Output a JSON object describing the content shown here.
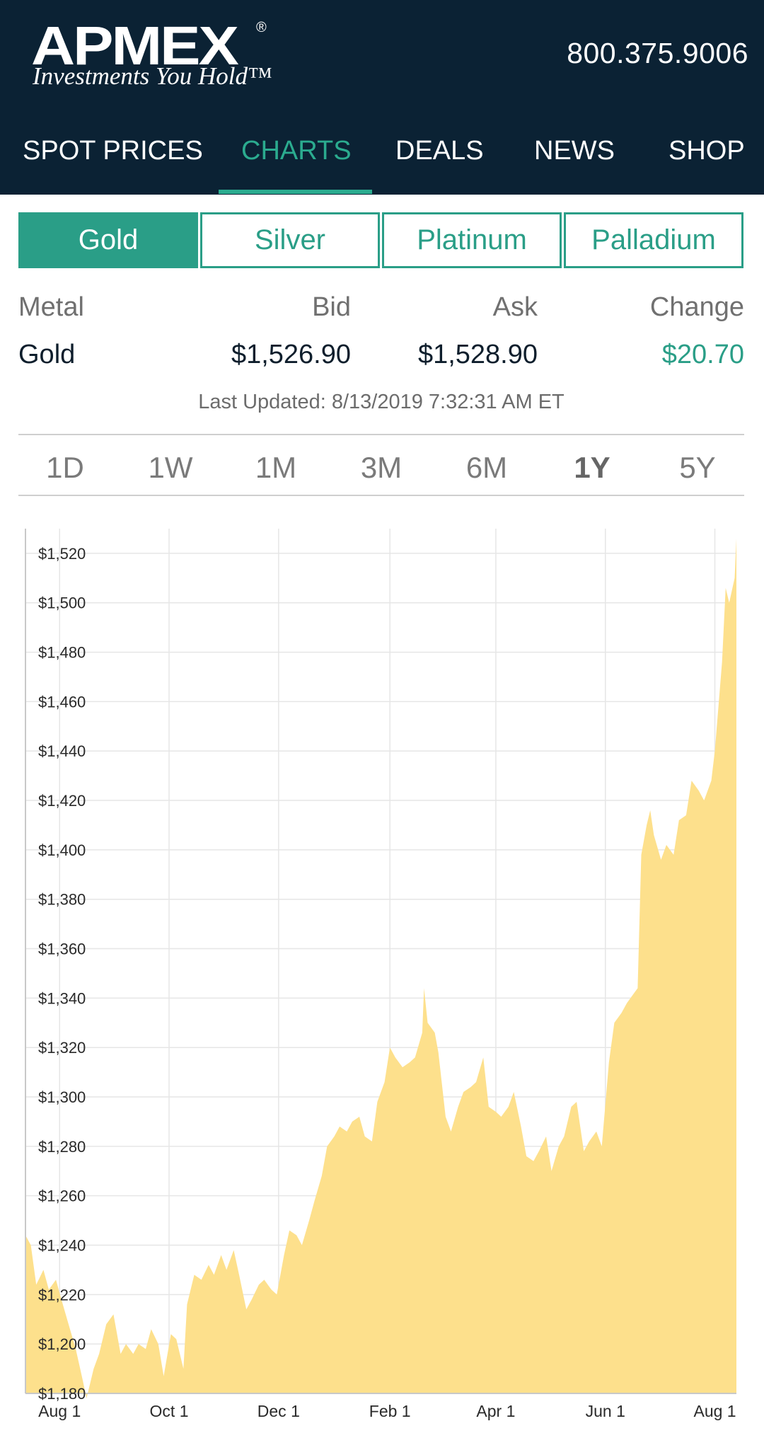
{
  "header": {
    "logo_text": "APMEX",
    "logo_reg": "®",
    "tagline": "Investments You Hold™",
    "phone": "800.375.9006"
  },
  "nav": {
    "items": [
      {
        "label": "SPOT PRICES",
        "active": false
      },
      {
        "label": "CHARTS",
        "active": true
      },
      {
        "label": "DEALS",
        "active": false
      },
      {
        "label": "NEWS",
        "active": false
      },
      {
        "label": "SHOP",
        "active": false
      }
    ]
  },
  "metal_tabs": [
    {
      "label": "Gold",
      "active": true
    },
    {
      "label": "Silver",
      "active": false
    },
    {
      "label": "Platinum",
      "active": false
    },
    {
      "label": "Palladium",
      "active": false
    }
  ],
  "price_table": {
    "headers": {
      "metal": "Metal",
      "bid": "Bid",
      "ask": "Ask",
      "change": "Change"
    },
    "row": {
      "metal": "Gold",
      "bid": "$1,526.90",
      "ask": "$1,528.90",
      "change": "$20.70"
    },
    "last_updated": "Last Updated: 8/13/2019 7:32:31 AM ET"
  },
  "time_ranges": [
    {
      "label": "1D",
      "active": false
    },
    {
      "label": "1W",
      "active": false
    },
    {
      "label": "1M",
      "active": false
    },
    {
      "label": "3M",
      "active": false
    },
    {
      "label": "6M",
      "active": false
    },
    {
      "label": "1Y",
      "active": true
    },
    {
      "label": "5Y",
      "active": false
    }
  ],
  "colors": {
    "header_bg": "#0b2234",
    "accent": "#2a9e87",
    "area_fill": "#fde08c",
    "grid": "#e6e6e6"
  },
  "chart_data": {
    "type": "area",
    "title": "",
    "xlabel": "",
    "ylabel": "",
    "ylim": [
      1180,
      1530
    ],
    "y_ticks": [
      1180,
      1200,
      1220,
      1240,
      1260,
      1280,
      1300,
      1320,
      1340,
      1360,
      1380,
      1400,
      1420,
      1440,
      1460,
      1480,
      1500,
      1520
    ],
    "y_tick_labels": [
      "$1,180",
      "$1,200",
      "$1,220",
      "$1,240",
      "$1,260",
      "$1,280",
      "$1,300",
      "$1,320",
      "$1,340",
      "$1,360",
      "$1,380",
      "$1,400",
      "$1,420",
      "$1,440",
      "$1,460",
      "$1,480",
      "$1,500",
      "$1,520"
    ],
    "x_range": [
      "2018-07-13",
      "2019-08-13"
    ],
    "x_ticks": [
      {
        "date": "2018-08-01",
        "label": "Aug 1"
      },
      {
        "date": "2018-10-01",
        "label": "Oct 1"
      },
      {
        "date": "2018-12-01",
        "label": "Dec 1"
      },
      {
        "date": "2019-02-01",
        "label": "Feb 1"
      },
      {
        "date": "2019-04-01",
        "label": "Apr 1"
      },
      {
        "date": "2019-06-01",
        "label": "Jun 1"
      },
      {
        "date": "2019-08-01",
        "label": "Aug 1"
      }
    ],
    "grid": true,
    "series": [
      {
        "name": "",
        "points": [
          [
            "2018-07-13",
            1244
          ],
          [
            "2018-07-16",
            1240
          ],
          [
            "2018-07-19",
            1224
          ],
          [
            "2018-07-23",
            1230
          ],
          [
            "2018-07-26",
            1222
          ],
          [
            "2018-07-30",
            1226
          ],
          [
            "2018-08-02",
            1218
          ],
          [
            "2018-08-06",
            1208
          ],
          [
            "2018-08-10",
            1198
          ],
          [
            "2018-08-14",
            1185
          ],
          [
            "2018-08-16",
            1178
          ],
          [
            "2018-08-20",
            1190
          ],
          [
            "2018-08-23",
            1196
          ],
          [
            "2018-08-27",
            1208
          ],
          [
            "2018-08-31",
            1212
          ],
          [
            "2018-09-04",
            1196
          ],
          [
            "2018-09-07",
            1200
          ],
          [
            "2018-09-11",
            1196
          ],
          [
            "2018-09-14",
            1200
          ],
          [
            "2018-09-18",
            1198
          ],
          [
            "2018-09-21",
            1206
          ],
          [
            "2018-09-25",
            1200
          ],
          [
            "2018-09-28",
            1187
          ],
          [
            "2018-10-02",
            1204
          ],
          [
            "2018-10-05",
            1202
          ],
          [
            "2018-10-09",
            1190
          ],
          [
            "2018-10-11",
            1216
          ],
          [
            "2018-10-15",
            1228
          ],
          [
            "2018-10-19",
            1226
          ],
          [
            "2018-10-23",
            1232
          ],
          [
            "2018-10-26",
            1228
          ],
          [
            "2018-10-30",
            1236
          ],
          [
            "2018-11-02",
            1230
          ],
          [
            "2018-11-06",
            1238
          ],
          [
            "2018-11-09",
            1228
          ],
          [
            "2018-11-13",
            1214
          ],
          [
            "2018-11-16",
            1218
          ],
          [
            "2018-11-20",
            1224
          ],
          [
            "2018-11-23",
            1226
          ],
          [
            "2018-11-27",
            1222
          ],
          [
            "2018-11-30",
            1220
          ],
          [
            "2018-12-04",
            1236
          ],
          [
            "2018-12-07",
            1246
          ],
          [
            "2018-12-11",
            1244
          ],
          [
            "2018-12-14",
            1240
          ],
          [
            "2018-12-18",
            1250
          ],
          [
            "2018-12-21",
            1258
          ],
          [
            "2018-12-25",
            1268
          ],
          [
            "2018-12-28",
            1280
          ],
          [
            "2019-01-01",
            1284
          ],
          [
            "2019-01-04",
            1288
          ],
          [
            "2019-01-08",
            1286
          ],
          [
            "2019-01-11",
            1290
          ],
          [
            "2019-01-15",
            1292
          ],
          [
            "2019-01-18",
            1284
          ],
          [
            "2019-01-22",
            1282
          ],
          [
            "2019-01-25",
            1298
          ],
          [
            "2019-01-29",
            1306
          ],
          [
            "2019-02-01",
            1320
          ],
          [
            "2019-02-04",
            1316
          ],
          [
            "2019-02-08",
            1312
          ],
          [
            "2019-02-12",
            1314
          ],
          [
            "2019-02-15",
            1316
          ],
          [
            "2019-02-19",
            1326
          ],
          [
            "2019-02-20",
            1344
          ],
          [
            "2019-02-22",
            1330
          ],
          [
            "2019-02-26",
            1326
          ],
          [
            "2019-02-28",
            1318
          ],
          [
            "2019-03-04",
            1292
          ],
          [
            "2019-03-07",
            1286
          ],
          [
            "2019-03-11",
            1296
          ],
          [
            "2019-03-14",
            1302
          ],
          [
            "2019-03-18",
            1304
          ],
          [
            "2019-03-21",
            1306
          ],
          [
            "2019-03-25",
            1316
          ],
          [
            "2019-03-28",
            1296
          ],
          [
            "2019-04-01",
            1294
          ],
          [
            "2019-04-04",
            1292
          ],
          [
            "2019-04-08",
            1296
          ],
          [
            "2019-04-11",
            1302
          ],
          [
            "2019-04-15",
            1288
          ],
          [
            "2019-04-18",
            1276
          ],
          [
            "2019-04-22",
            1274
          ],
          [
            "2019-04-25",
            1278
          ],
          [
            "2019-04-29",
            1284
          ],
          [
            "2019-05-02",
            1270
          ],
          [
            "2019-05-06",
            1280
          ],
          [
            "2019-05-09",
            1284
          ],
          [
            "2019-05-13",
            1296
          ],
          [
            "2019-05-16",
            1298
          ],
          [
            "2019-05-20",
            1278
          ],
          [
            "2019-05-23",
            1282
          ],
          [
            "2019-05-27",
            1286
          ],
          [
            "2019-05-30",
            1280
          ],
          [
            "2019-06-03",
            1314
          ],
          [
            "2019-06-06",
            1330
          ],
          [
            "2019-06-10",
            1334
          ],
          [
            "2019-06-13",
            1338
          ],
          [
            "2019-06-17",
            1342
          ],
          [
            "2019-06-19",
            1344
          ],
          [
            "2019-06-21",
            1398
          ],
          [
            "2019-06-24",
            1410
          ],
          [
            "2019-06-26",
            1416
          ],
          [
            "2019-06-28",
            1406
          ],
          [
            "2019-07-02",
            1396
          ],
          [
            "2019-07-05",
            1402
          ],
          [
            "2019-07-09",
            1398
          ],
          [
            "2019-07-12",
            1412
          ],
          [
            "2019-07-16",
            1414
          ],
          [
            "2019-07-19",
            1428
          ],
          [
            "2019-07-23",
            1424
          ],
          [
            "2019-07-26",
            1420
          ],
          [
            "2019-07-30",
            1428
          ],
          [
            "2019-08-01",
            1440
          ],
          [
            "2019-08-05",
            1476
          ],
          [
            "2019-08-07",
            1506
          ],
          [
            "2019-08-09",
            1500
          ],
          [
            "2019-08-12",
            1510
          ],
          [
            "2019-08-13",
            1526
          ]
        ]
      }
    ]
  }
}
